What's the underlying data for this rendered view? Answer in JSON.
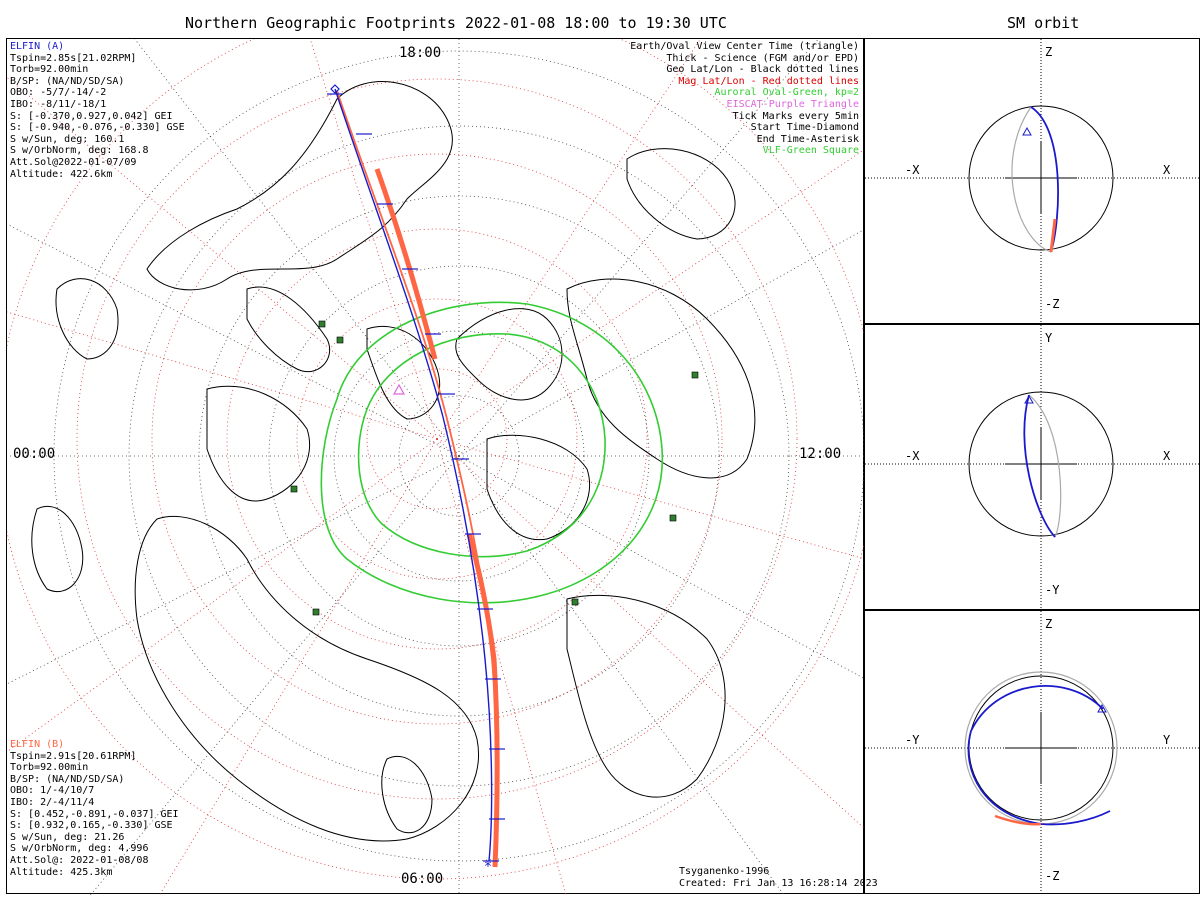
{
  "title": "Northern Geographic Footprints 2022-01-08 18:00 to 19:30 UTC",
  "orbit_title": "SM orbit",
  "time_labels": {
    "top": "18:00",
    "left": "00:00",
    "right": "12:00",
    "bottom": "06:00"
  },
  "elfin_a": {
    "name": "ELFIN (A)",
    "color": "#1a1acc",
    "lines": [
      "Tspin=2.85s[21.02RPM]",
      "Torb=92.00min",
      "B/SP: (NA/ND/SD/SA)",
      "OBO: -5/7/-14/-2",
      "IBO: -8/11/-18/1",
      "S: [-0.370,0.927,0.042] GEI",
      "S: [-0.940,-0.076,-0.330] GSE",
      "S w/Sun, deg: 160.1",
      "S w/OrbNorm, deg: 168.8",
      "Att.Sol@2022-01-07/09",
      "Altitude: 422.6km"
    ]
  },
  "elfin_b": {
    "name": "ELFIN (B)",
    "color": "#ff6644",
    "lines": [
      "Tspin=2.91s[20.61RPM]",
      "Torb=92.00min",
      "B/SP: (NA/ND/SD/SA)",
      "OBO: 1/-4/10/7",
      "IBO: 2/-4/11/4",
      "S: [0.452,-0.891,-0.037] GEI",
      "S: [0.932,0.165,-0.330] GSE",
      "S w/Sun, deg: 21.26",
      "S w/OrbNorm, deg: 4.996",
      "Att.Sol@: 2022-01-08/08",
      "Altitude: 425.3km"
    ]
  },
  "legend": [
    {
      "text": "Earth/Oval View Center Time (triangle)",
      "color": "#000000"
    },
    {
      "text": "Thick - Science (FGM and/or EPD)",
      "color": "#000000"
    },
    {
      "text": "Geo Lat/Lon - Black dotted lines",
      "color": "#000000"
    },
    {
      "text": "Mag Lat/Lon - Red dotted lines",
      "color": "#dd0000"
    },
    {
      "text": "Auroral Oval-Green, kp=2",
      "color": "#33cc33"
    },
    {
      "text": "EISCAT-Purple Triangle",
      "color": "#dd66dd"
    },
    {
      "text": "Tick Marks every 5min",
      "color": "#000000"
    },
    {
      "text": "Start Time-Diamond",
      "color": "#000000"
    },
    {
      "text": "End Time-Asterisk",
      "color": "#000000"
    },
    {
      "text": "VLF-Green Square",
      "color": "#33cc33"
    }
  ],
  "credit": {
    "model": "Tsyganenko-1996",
    "created": "Created: Fri Jan 13 16:28:14 2023"
  },
  "orbit_panels": [
    {
      "top": "Z",
      "bottom": "-Z",
      "left": "-X",
      "right": "X"
    },
    {
      "top": "Y",
      "bottom": "-Y",
      "left": "-X",
      "right": "X"
    },
    {
      "top": "Z",
      "bottom": "-Z",
      "left": "-Y",
      "right": "Y"
    }
  ]
}
